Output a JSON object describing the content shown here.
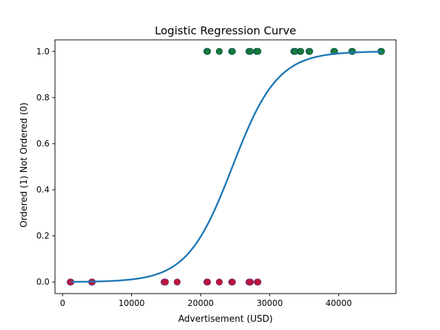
{
  "chart_data": {
    "type": "scatter",
    "title": "Logistic Regression Curve",
    "xlabel": "Advertisement (USD)",
    "ylabel": "Ordered (1) Not Ordered (0)",
    "xlim": [
      -1100,
      48300
    ],
    "ylim": [
      -0.05,
      1.05
    ],
    "x_ticks": [
      0,
      10000,
      20000,
      30000,
      40000
    ],
    "y_ticks": [
      0.0,
      0.2,
      0.4,
      0.6,
      0.8,
      1.0
    ],
    "x_tick_labels": [
      "0",
      "10000",
      "20000",
      "30000",
      "40000"
    ],
    "y_tick_labels": [
      "0.0",
      "0.2",
      "0.4",
      "0.6",
      "0.8",
      "1.0"
    ],
    "grid": false,
    "series": [
      {
        "kind": "points",
        "y": 0,
        "color": "#c0143c",
        "edge_color": "#7a2a6a",
        "x": [
          1100,
          1200,
          4200,
          4300,
          14700,
          14900,
          16600,
          20900,
          21000,
          22700,
          24500,
          24600,
          27000,
          27200,
          28200,
          28300
        ]
      },
      {
        "kind": "points",
        "y": 1,
        "color": "#1a7a3a",
        "edge_color": "#0c5c52",
        "x": [
          20900,
          21000,
          22700,
          24500,
          24600,
          27000,
          27200,
          28100,
          28300,
          33500,
          33700,
          34400,
          34500,
          35700,
          35800,
          39300,
          39400,
          41900,
          42000,
          46100,
          46200
        ]
      },
      {
        "kind": "curve",
        "color": "#1f77b4",
        "model": "logistic",
        "x_range": [
          1200,
          46200
        ],
        "midpoint": 24600,
        "steepness": 0.000306
      }
    ]
  }
}
